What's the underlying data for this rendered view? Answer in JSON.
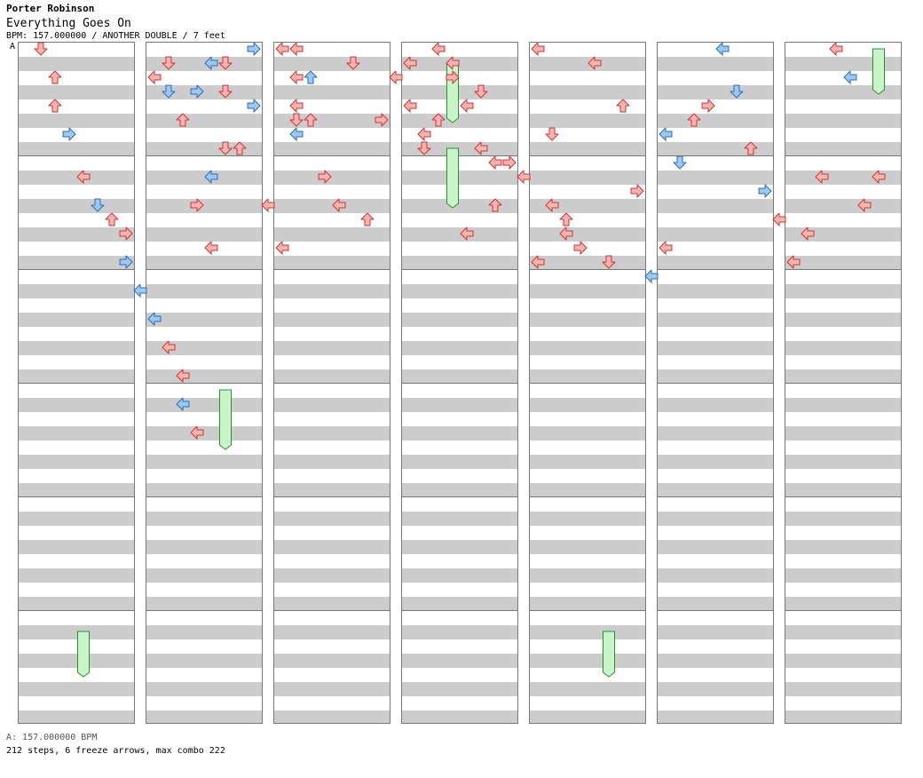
{
  "header": {
    "artist": "Porter Robinson",
    "title": "Everything Goes On",
    "info": "BPM: 157.000000 / ANOTHER DOUBLE / 7 feet"
  },
  "bpm_marker": "A",
  "footer": {
    "bpm_line": "A: 157.000000 BPM",
    "stats": "212 steps, 6 freeze arrows, max combo 222"
  },
  "colors": {
    "quarter_fill": "#f9b3b3",
    "quarter_stroke": "#cc3333",
    "eighth_fill": "#9cc8f3",
    "eighth_stroke": "#2a6cb5",
    "freeze_fill": "#c8f5c8",
    "freeze_stroke": "#2f8f2f",
    "stripe_light": "#ffffff",
    "stripe_dark": "#cccccc",
    "measure_line": "#777777"
  },
  "panels": 7,
  "lane_order": [
    "left",
    "down",
    "up",
    "right",
    "left",
    "down",
    "up",
    "right"
  ],
  "notes": [
    [
      0,
      1,
      0,
      "q"
    ],
    [
      0,
      2,
      2,
      "q"
    ],
    [
      0,
      2,
      4,
      "q"
    ],
    [
      0,
      3,
      6,
      "e"
    ],
    [
      0,
      4,
      9,
      "q"
    ],
    [
      0,
      5,
      11,
      "e"
    ],
    [
      0,
      6,
      12,
      "q"
    ],
    [
      0,
      7,
      13,
      "q"
    ],
    [
      0,
      7,
      15,
      "e"
    ],
    [
      0,
      8,
      17,
      "e"
    ],
    [
      0,
      9,
      19,
      "e"
    ],
    [
      0,
      10,
      21,
      "q"
    ],
    [
      0,
      11,
      23,
      "q"
    ],
    [
      0,
      11,
      25,
      "e"
    ],
    [
      0,
      12,
      27,
      "q"
    ],
    [
      1,
      0,
      2,
      "q"
    ],
    [
      1,
      1,
      1,
      "q"
    ],
    [
      1,
      1,
      3,
      "e"
    ],
    [
      1,
      2,
      5,
      "q"
    ],
    [
      1,
      3,
      3,
      "e"
    ],
    [
      1,
      3,
      11,
      "q"
    ],
    [
      1,
      4,
      1,
      "e"
    ],
    [
      1,
      4,
      9,
      "e"
    ],
    [
      1,
      4,
      14,
      "q"
    ],
    [
      1,
      5,
      1,
      "q"
    ],
    [
      1,
      5,
      3,
      "q"
    ],
    [
      1,
      5,
      7,
      "q"
    ],
    [
      1,
      6,
      7,
      "q"
    ],
    [
      1,
      7,
      0,
      "e"
    ],
    [
      1,
      7,
      4,
      "e"
    ],
    [
      1,
      8,
      11,
      "q"
    ],
    [
      1,
      9,
      14,
      "q"
    ],
    [
      1,
      10,
      0,
      "q"
    ],
    [
      1,
      10,
      2,
      "q"
    ],
    [
      1,
      10,
      4,
      "q"
    ],
    [
      1,
      10,
      6,
      "e"
    ],
    [
      2,
      0,
      0,
      "q"
    ],
    [
      2,
      1,
      5,
      "q"
    ],
    [
      2,
      2,
      2,
      "e"
    ],
    [
      2,
      2,
      5,
      "q"
    ],
    [
      2,
      3,
      9,
      "q"
    ],
    [
      2,
      4,
      11,
      "q"
    ],
    [
      2,
      5,
      1,
      "q"
    ],
    [
      2,
      6,
      12,
      "q"
    ],
    [
      2,
      7,
      5,
      "q"
    ],
    [
      2,
      8,
      2,
      "q"
    ],
    [
      2,
      9,
      4,
      "q"
    ],
    [
      2,
      10,
      6,
      "q"
    ],
    [
      2,
      11,
      0,
      "q"
    ],
    [
      2,
      12,
      1,
      "q"
    ],
    [
      2,
      13,
      4,
      "q"
    ],
    [
      2,
      14,
      7,
      "q"
    ],
    [
      2,
      15,
      8,
      "q"
    ],
    [
      3,
      0,
      1,
      "q"
    ],
    [
      3,
      1,
      7,
      "q"
    ],
    [
      3,
      2,
      5,
      "q"
    ],
    [
      3,
      3,
      2,
      "q"
    ],
    [
      3,
      4,
      13,
      "q"
    ],
    [
      3,
      5,
      3,
      "q"
    ],
    [
      3,
      6,
      11,
      "q"
    ],
    [
      3,
      7,
      8,
      "q"
    ],
    [
      3,
      8,
      9,
      "q"
    ],
    [
      3,
      9,
      15,
      "q"
    ],
    [
      3,
      10,
      11,
      "q"
    ],
    [
      3,
      11,
      13,
      "q"
    ],
    [
      4,
      0,
      0,
      "q"
    ],
    [
      4,
      1,
      6,
      "q"
    ],
    [
      4,
      2,
      12,
      "q"
    ],
    [
      4,
      3,
      14,
      "q"
    ],
    [
      4,
      4,
      1,
      "q"
    ],
    [
      4,
      5,
      15,
      "q"
    ],
    [
      4,
      6,
      4,
      "q"
    ],
    [
      4,
      7,
      10,
      "q"
    ],
    [
      4,
      8,
      16,
      "e"
    ],
    [
      4,
      9,
      14,
      "q"
    ],
    [
      5,
      0,
      6,
      "e"
    ],
    [
      5,
      1,
      8,
      "e"
    ],
    [
      5,
      2,
      5,
      "q"
    ],
    [
      5,
      3,
      4,
      "q"
    ],
    [
      5,
      4,
      0,
      "e"
    ],
    [
      5,
      5,
      3,
      "e"
    ],
    [
      5,
      6,
      7,
      "q"
    ],
    [
      5,
      7,
      10,
      "e"
    ],
    [
      5,
      8,
      12,
      "q"
    ],
    [
      5,
      9,
      15,
      "q"
    ],
    [
      5,
      10,
      13,
      "q"
    ],
    [
      5,
      11,
      9,
      "q"
    ],
    [
      5,
      12,
      0,
      "q"
    ],
    [
      5,
      13,
      2,
      "e"
    ],
    [
      5,
      14,
      11,
      "q"
    ],
    [
      5,
      15,
      9,
      "q"
    ]
  ],
  "freezes": [
    [
      3,
      3,
      1,
      5
    ],
    [
      3,
      3,
      7,
      11
    ],
    [
      6,
      6,
      0,
      3
    ],
    [
      1,
      5,
      24,
      28
    ],
    [
      0,
      4,
      41,
      44
    ],
    [
      4,
      5,
      41,
      44
    ]
  ]
}
